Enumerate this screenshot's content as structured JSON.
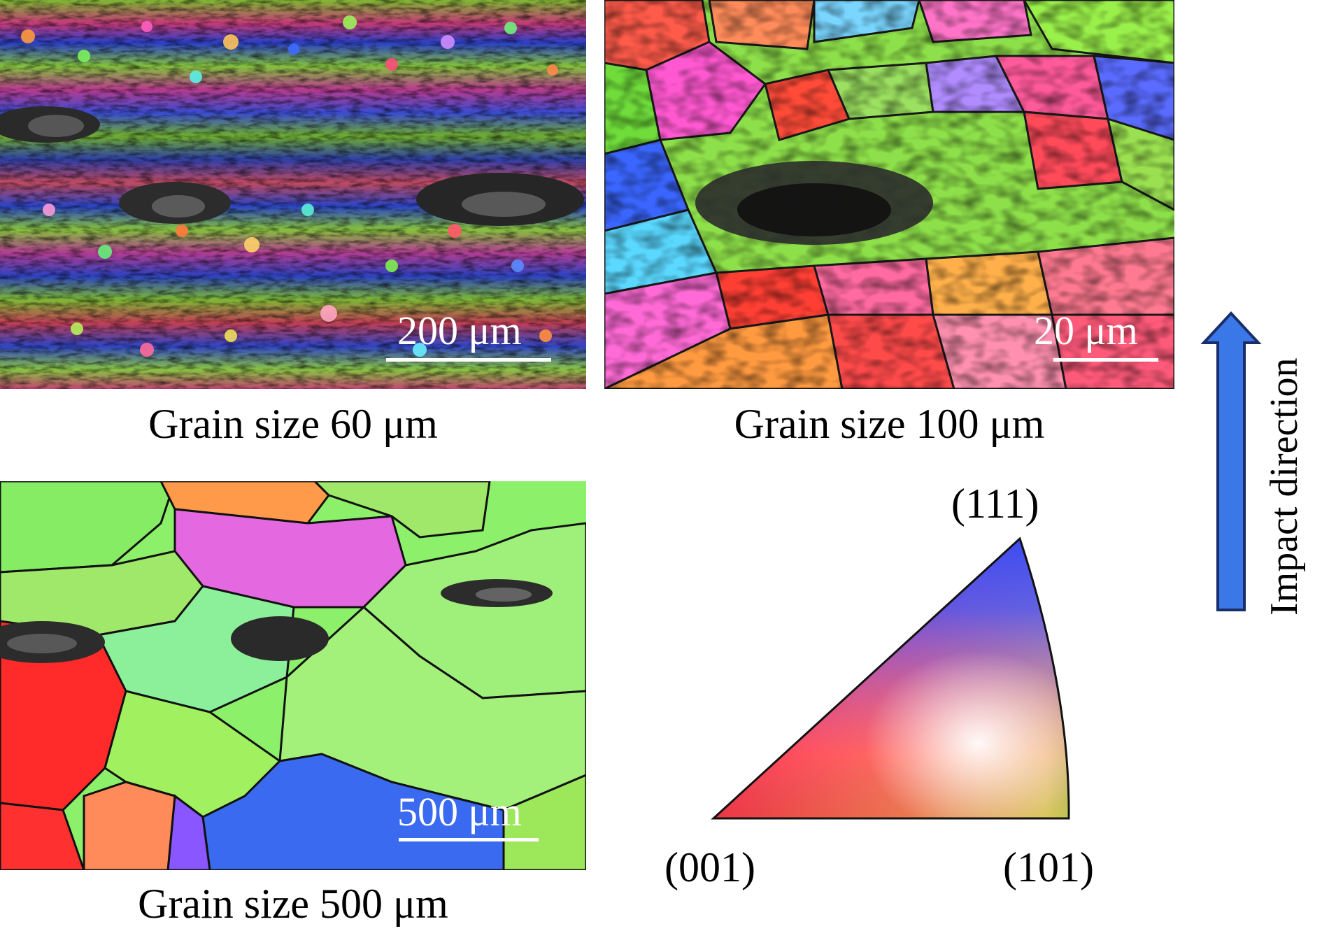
{
  "panels": [
    {
      "id": "a",
      "caption": "Grain size 60 μm",
      "scalebar": "200 μm"
    },
    {
      "id": "b",
      "caption": "Grain size 100 μm",
      "scalebar": "20 μm"
    },
    {
      "id": "c",
      "caption": "Grain size 500 μm",
      "scalebar": "500 μm"
    }
  ],
  "ipf_key": {
    "labels": {
      "top": "(111)",
      "left": "(001)",
      "right": "(101)"
    },
    "colors": {
      "001": "#ff1a1a",
      "101": "#22dd11",
      "111": "#1a3cff"
    }
  },
  "impact": {
    "label": "Impact direction",
    "arrow_color": "#3a78e8",
    "arrow_icon": "up-arrow-icon"
  }
}
